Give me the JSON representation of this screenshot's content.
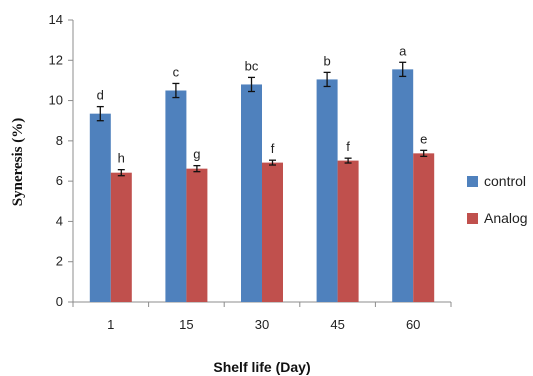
{
  "chart_data": {
    "type": "bar",
    "xlabel": "Shelf life (Day)",
    "ylabel": "Syneresis (%)",
    "ylim": [
      0,
      14
    ],
    "ytick_step": 2,
    "yticks": [
      "0",
      "2",
      "4",
      "6",
      "8",
      "10",
      "12",
      "14"
    ],
    "categories": [
      "1",
      "15",
      "30",
      "45",
      "60"
    ],
    "legend_position": "right",
    "grid": false,
    "series": [
      {
        "name": "control",
        "color": "#4F81BD",
        "values": [
          9.35,
          10.5,
          10.8,
          11.05,
          11.55
        ],
        "errors": [
          0.35,
          0.35,
          0.35,
          0.35,
          0.35
        ],
        "labels": [
          "d",
          "c",
          "bc",
          "b",
          "a"
        ]
      },
      {
        "name": "Analog",
        "color": "#C0504D",
        "values": [
          6.42,
          6.62,
          6.92,
          7.02,
          7.38
        ],
        "errors": [
          0.15,
          0.15,
          0.12,
          0.12,
          0.15
        ],
        "labels": [
          "h",
          "g",
          "f",
          "f",
          "e"
        ]
      }
    ]
  }
}
